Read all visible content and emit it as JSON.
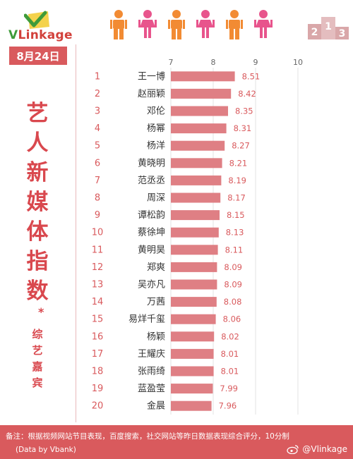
{
  "brand": {
    "logo_v": "V",
    "logo_rest": "Linkage"
  },
  "date": "8月24日",
  "side_title": {
    "chars": [
      "艺",
      "人",
      "新",
      "媒",
      "体",
      "指",
      "数"
    ],
    "star": "*",
    "sub_chars": [
      "综",
      "艺",
      "嘉",
      "宾"
    ]
  },
  "colors": {
    "accent": "#d95a5d",
    "bar": "#df7f84",
    "person_orange": "#f28b33",
    "person_pink": "#e8548c"
  },
  "people_icons": [
    "person-orange",
    "person-pink",
    "person-orange",
    "person-pink",
    "person-orange",
    "person-pink"
  ],
  "podium_labels": [
    "2",
    "1",
    "3"
  ],
  "chart_data": {
    "type": "bar",
    "orientation": "horizontal",
    "xlim": [
      7,
      10
    ],
    "xticks": [
      "7",
      "8",
      "9",
      "10"
    ],
    "grid": true,
    "ranks": [
      "1",
      "2",
      "3",
      "4",
      "5",
      "6",
      "7",
      "8",
      "9",
      "10",
      "11",
      "12",
      "13",
      "14",
      "15",
      "16",
      "17",
      "18",
      "19",
      "20"
    ],
    "categories": [
      "王一博",
      "赵丽颖",
      "邓伦",
      "杨幂",
      "杨洋",
      "黄晓明",
      "范丞丞",
      "周深",
      "谭松韵",
      "蔡徐坤",
      "黄明昊",
      "郑爽",
      "吴亦凡",
      "万茜",
      "易烊千玺",
      "杨颖",
      "王耀庆",
      "张雨绮",
      "蓝盈莹",
      "金晨"
    ],
    "values": [
      8.51,
      8.42,
      8.35,
      8.31,
      8.27,
      8.21,
      8.19,
      8.17,
      8.15,
      8.13,
      8.11,
      8.09,
      8.09,
      8.08,
      8.06,
      8.02,
      8.01,
      8.01,
      7.99,
      7.96
    ],
    "value_labels": [
      "8.51",
      "8.42",
      "8.35",
      "8.31",
      "8.27",
      "8.21",
      "8.19",
      "8.17",
      "8.15",
      "8.13",
      "8.11",
      "8.09",
      "8.09",
      "8.08",
      "8.06",
      "8.02",
      "8.01",
      "8.01",
      "7.99",
      "7.96"
    ]
  },
  "footer": {
    "note": "备注：根据视频网站节目表现，百度搜索，社交网站等昨日数据表现综合评分，10分制",
    "source": "(Data by Vbank)",
    "weibo": "@Vlinkage"
  }
}
